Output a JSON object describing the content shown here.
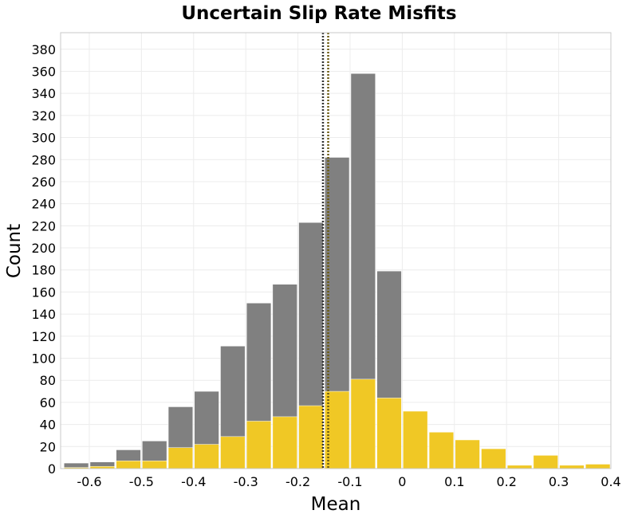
{
  "chart_data": {
    "type": "bar",
    "title": "Uncertain Slip Rate Misfits",
    "xlabel": "Mean",
    "ylabel": "Count",
    "xlim": [
      -0.655,
      0.4
    ],
    "ylim": [
      0,
      395
    ],
    "xticks": [
      -0.6,
      -0.5,
      -0.4,
      -0.3,
      -0.2,
      -0.1,
      0,
      0.1,
      0.2,
      0.3,
      0.4
    ],
    "xtick_labels": [
      "-0.6",
      "-0.5",
      "-0.4",
      "-0.3",
      "-0.2",
      "-0.1",
      "0",
      "0.1",
      "0.2",
      "0.3",
      "0.4"
    ],
    "yticks": [
      0,
      20,
      40,
      60,
      80,
      100,
      120,
      140,
      160,
      180,
      200,
      220,
      240,
      260,
      280,
      300,
      320,
      340,
      360,
      380
    ],
    "ytick_labels": [
      "0",
      "20",
      "40",
      "60",
      "80",
      "100",
      "120",
      "140",
      "160",
      "180",
      "200",
      "220",
      "240",
      "260",
      "280",
      "300",
      "320",
      "340",
      "360",
      "380"
    ],
    "grid": true,
    "bin_width": 0.05,
    "bin_centers": [
      -0.625,
      -0.575,
      -0.525,
      -0.475,
      -0.425,
      -0.375,
      -0.325,
      -0.275,
      -0.225,
      -0.175,
      -0.125,
      -0.075,
      -0.025,
      0.025,
      0.075,
      0.125,
      0.175,
      0.225,
      0.275,
      0.325,
      0.375
    ],
    "series": [
      {
        "color": "#808080",
        "values": [
          5,
          6,
          17,
          25,
          56,
          70,
          111,
          150,
          167,
          223,
          282,
          358,
          179,
          null,
          null,
          null,
          null,
          null,
          null,
          null,
          null
        ]
      },
      {
        "color": "#F0C825",
        "values": [
          1,
          2,
          7,
          7,
          19,
          22,
          29,
          43,
          47,
          57,
          70,
          81,
          64,
          52,
          33,
          26,
          18,
          3,
          12,
          3,
          4
        ]
      }
    ],
    "vlines": [
      {
        "x": -0.152,
        "color": "#333333",
        "style": "dotted"
      },
      {
        "x": -0.142,
        "color": "#6B5A10",
        "style": "dotted"
      }
    ]
  }
}
